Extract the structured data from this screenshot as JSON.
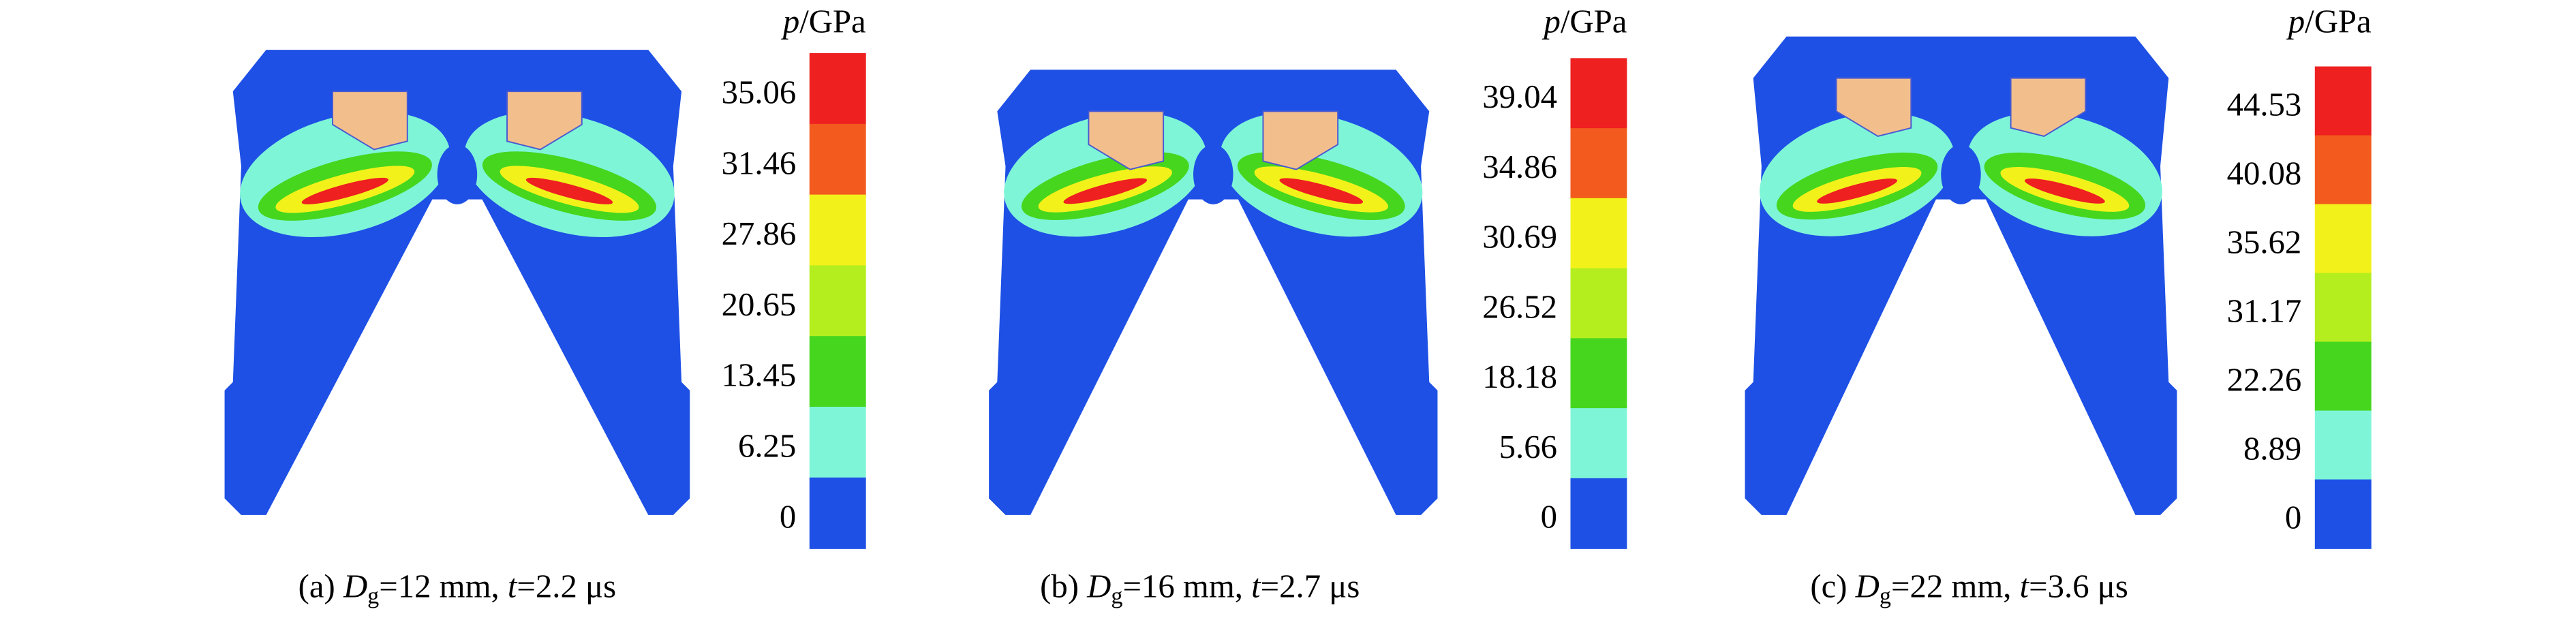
{
  "panels": [
    {
      "unit": {
        "symbol": "p",
        "text": "/GPa"
      },
      "colorbar": {
        "labels": [
          "35.06",
          "31.46",
          "27.86",
          "20.65",
          "13.45",
          "6.25",
          "0"
        ]
      },
      "caption": {
        "label": "(a) ",
        "symbol": "D",
        "subscript": "g",
        "text1": "=12 mm, ",
        "time_symbol": "t",
        "text2": "=2.2 μs"
      }
    },
    {
      "unit": {
        "symbol": "p",
        "text": "/GPa"
      },
      "colorbar": {
        "labels": [
          "39.04",
          "34.86",
          "30.69",
          "26.52",
          "18.18",
          "5.66",
          "0"
        ]
      },
      "caption": {
        "label": "(b) ",
        "symbol": "D",
        "subscript": "g",
        "text1": "=16 mm, ",
        "time_symbol": "t",
        "text2": "=2.7 μs"
      }
    },
    {
      "unit": {
        "symbol": "p",
        "text": "/GPa"
      },
      "colorbar": {
        "labels": [
          "44.53",
          "40.08",
          "35.62",
          "31.17",
          "22.26",
          "8.89",
          "0"
        ]
      },
      "caption": {
        "label": "(c) ",
        "symbol": "D",
        "subscript": "g",
        "text1": "=22 mm, ",
        "time_symbol": "t",
        "text2": "=3.6 μs"
      }
    }
  ],
  "colorbar_colors": [
    "#ee2020",
    "#f25a1e",
    "#f2f21a",
    "#b4ee1e",
    "#46d61e",
    "#7ff5d8",
    "#1e50e6"
  ]
}
